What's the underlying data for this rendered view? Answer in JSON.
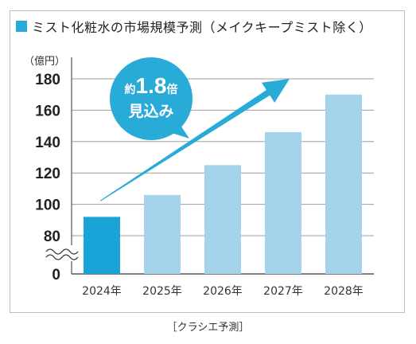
{
  "title": "ミスト化粧水の市場規模予測（メイクキープミスト除く）",
  "colors": {
    "accent": "#29abd8",
    "highlight_bar": "#1aa3d6",
    "forecast_bar": "#a6d3ec",
    "grid": "#9e9e9e",
    "callout": "#29abd8"
  },
  "chart_data": {
    "type": "bar",
    "title": "ミスト化粧水の市場規模予測（メイクキープミスト除く）",
    "unit_label": "（億円）",
    "categories": [
      "2024年",
      "2025年",
      "2026年",
      "2027年",
      "2028年"
    ],
    "values": [
      92,
      106,
      125,
      146,
      170
    ],
    "highlighted_category": "2024年",
    "y_ticks": [
      "0",
      "80",
      "100",
      "120",
      "140",
      "160",
      "180"
    ],
    "ylim": [
      80,
      180
    ],
    "axis_break": true,
    "grid": true,
    "callout": {
      "line1_prefix": "約",
      "line1_value": "1.8",
      "line1_suffix": "倍",
      "line2": "見込み"
    },
    "trend_arrow": true
  },
  "source": "［クラシエ予測］"
}
